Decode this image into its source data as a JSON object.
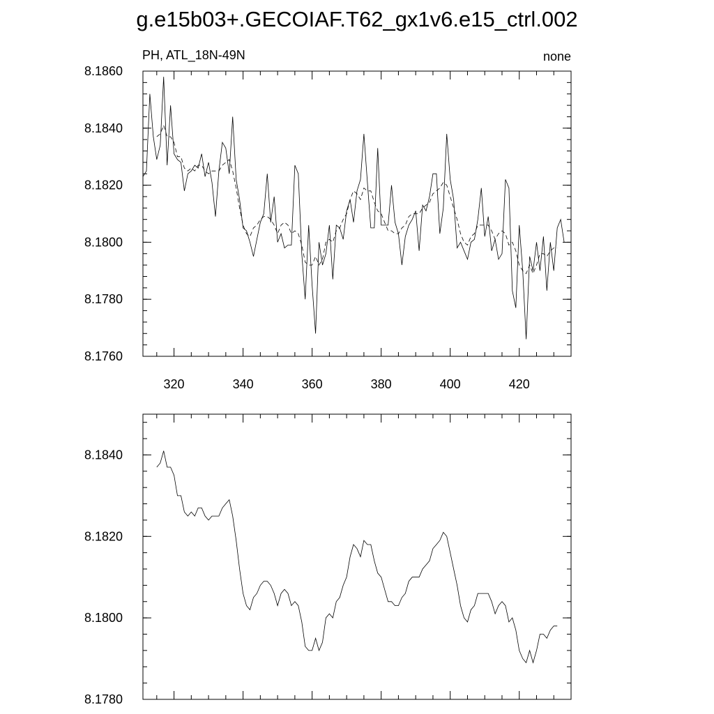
{
  "page": {
    "title": "g.e15b03+.GECOIAF.T62_gx1v6.e15_ctrl.002"
  },
  "chart_data": [
    {
      "type": "line",
      "subtitle_left": "PH, ATL_18N-49N",
      "subtitle_right": "none",
      "xlim": [
        311,
        435
      ],
      "ylim": [
        8.176,
        8.186
      ],
      "xticks": [
        320,
        340,
        360,
        380,
        400,
        420
      ],
      "xtick_labels": [
        "320",
        "340",
        "360",
        "380",
        "400",
        "420"
      ],
      "yticks": [
        8.176,
        8.178,
        8.18,
        8.182,
        8.184,
        8.186
      ],
      "ytick_labels": [
        "8.1760",
        "8.1780",
        "8.1800",
        "8.1820",
        "8.1840",
        "8.1860"
      ],
      "grid": false,
      "series": [
        {
          "style": "solid",
          "x": [
            311,
            312,
            313,
            314,
            315,
            316,
            317,
            318,
            319,
            320,
            321,
            322,
            323,
            324,
            325,
            326,
            327,
            328,
            329,
            330,
            331,
            332,
            333,
            334,
            335,
            336,
            337,
            338,
            339,
            340,
            341,
            342,
            343,
            344,
            345,
            346,
            347,
            348,
            349,
            350,
            351,
            352,
            353,
            354,
            355,
            356,
            357,
            358,
            359,
            360,
            361,
            362,
            363,
            364,
            365,
            366,
            367,
            368,
            369,
            370,
            371,
            372,
            373,
            374,
            375,
            376,
            377,
            378,
            379,
            380,
            381,
            382,
            383,
            384,
            385,
            386,
            387,
            388,
            389,
            390,
            391,
            392,
            393,
            394,
            395,
            396,
            397,
            398,
            399,
            400,
            401,
            402,
            403,
            404,
            405,
            406,
            407,
            408,
            409,
            410,
            411,
            412,
            413,
            414,
            415,
            416,
            417,
            418,
            419,
            420,
            421,
            422,
            423,
            424,
            425,
            426,
            427,
            428,
            429,
            430,
            431,
            432,
            433,
            434,
            435
          ],
          "values": [
            8.1823,
            8.1825,
            8.1852,
            8.1837,
            8.1829,
            8.1834,
            8.1858,
            8.1827,
            8.1848,
            8.1831,
            8.1829,
            8.1828,
            8.1818,
            8.1824,
            8.1825,
            8.1827,
            8.1826,
            8.1831,
            8.1823,
            8.1828,
            8.1821,
            8.1809,
            8.1825,
            8.1835,
            8.1833,
            8.1824,
            8.1844,
            8.1822,
            8.1815,
            8.1805,
            8.1804,
            8.18,
            8.1795,
            8.1801,
            8.1807,
            8.181,
            8.1824,
            8.1807,
            8.1816,
            8.18,
            8.1803,
            8.1798,
            8.1799,
            8.1799,
            8.1827,
            8.1824,
            8.1796,
            8.178,
            8.1806,
            8.1785,
            8.1768,
            8.18,
            8.1792,
            8.1796,
            8.1806,
            8.1787,
            8.1806,
            8.1805,
            8.1801,
            8.1811,
            8.1815,
            8.1807,
            8.1818,
            8.1822,
            8.1838,
            8.1821,
            8.1805,
            8.1805,
            8.1833,
            8.1806,
            8.1806,
            8.1806,
            8.182,
            8.1807,
            8.1803,
            8.1792,
            8.1802,
            8.1806,
            8.1808,
            8.1811,
            8.1797,
            8.1813,
            8.1811,
            8.1816,
            8.1824,
            8.1824,
            8.1803,
            8.1812,
            8.1838,
            8.1822,
            8.1815,
            8.1798,
            8.18,
            8.1797,
            8.1794,
            8.18,
            8.1801,
            8.1808,
            8.1819,
            8.1802,
            8.1809,
            8.1797,
            8.1801,
            8.1794,
            8.1796,
            8.1822,
            8.1819,
            8.1783,
            8.1777,
            8.1806,
            8.179,
            8.1766,
            8.1795,
            8.179,
            8.18,
            8.179,
            8.1802,
            8.1783,
            8.18,
            8.179,
            8.1805,
            8.1808,
            8.18,
            8.18,
            8.18
          ]
        },
        {
          "style": "dashed",
          "x": [
            315,
            316,
            317,
            318,
            319,
            320,
            321,
            322,
            323,
            324,
            325,
            326,
            327,
            328,
            329,
            330,
            331,
            332,
            333,
            334,
            335,
            336,
            337,
            338,
            339,
            340,
            341,
            342,
            343,
            344,
            345,
            346,
            347,
            348,
            349,
            350,
            351,
            352,
            353,
            354,
            355,
            356,
            357,
            358,
            359,
            360,
            361,
            362,
            363,
            364,
            365,
            366,
            367,
            368,
            369,
            370,
            371,
            372,
            373,
            374,
            375,
            376,
            377,
            378,
            379,
            380,
            381,
            382,
            383,
            384,
            385,
            386,
            387,
            388,
            389,
            390,
            391,
            392,
            393,
            394,
            395,
            396,
            397,
            398,
            399,
            400,
            401,
            402,
            403,
            404,
            405,
            406,
            407,
            408,
            409,
            410,
            411,
            412,
            413,
            414,
            415,
            416,
            417,
            418,
            419,
            420,
            421,
            422,
            423,
            424,
            425,
            426,
            427,
            428,
            429,
            430,
            431
          ],
          "values": [
            8.1837,
            8.1838,
            8.1841,
            8.1837,
            8.1837,
            8.1835,
            8.183,
            8.183,
            8.1826,
            8.1825,
            8.1826,
            8.1825,
            8.1827,
            8.1827,
            8.1825,
            8.1824,
            8.1825,
            8.1825,
            8.1825,
            8.1827,
            8.1828,
            8.1829,
            8.1825,
            8.1819,
            8.1812,
            8.1806,
            8.1803,
            8.1802,
            8.1805,
            8.1806,
            8.1808,
            8.1809,
            8.1809,
            8.1808,
            8.1806,
            8.1803,
            8.1806,
            8.1807,
            8.1806,
            8.1803,
            8.1804,
            8.1803,
            8.1799,
            8.1793,
            8.1792,
            8.1792,
            8.1795,
            8.1792,
            8.1794,
            8.18,
            8.1801,
            8.18,
            8.1804,
            8.1805,
            8.1808,
            8.181,
            8.1815,
            8.1818,
            8.1817,
            8.1815,
            8.1819,
            8.1818,
            8.1818,
            8.1814,
            8.1811,
            8.181,
            8.1807,
            8.1804,
            8.1804,
            8.1803,
            8.1803,
            8.1805,
            8.1806,
            8.1809,
            8.181,
            8.181,
            8.181,
            8.1812,
            8.1813,
            8.1814,
            8.1817,
            8.1818,
            8.1819,
            8.1821,
            8.182,
            8.1816,
            8.1812,
            8.1808,
            8.1803,
            8.18,
            8.1799,
            8.1802,
            8.1803,
            8.1806,
            8.1806,
            8.1806,
            8.1806,
            8.1804,
            8.1801,
            8.1803,
            8.1804,
            8.1803,
            8.1799,
            8.18,
            8.1797,
            8.1792,
            8.179,
            8.1789,
            8.1792,
            8.1789,
            8.1792,
            8.1796,
            8.1796,
            8.1795,
            8.1797,
            8.1798,
            8.1798
          ]
        }
      ]
    },
    {
      "type": "line",
      "xlim": [
        311,
        435
      ],
      "ylim": [
        8.178,
        8.185
      ],
      "xticks": [
        320,
        340,
        360,
        380,
        400,
        420
      ],
      "xtick_labels": [],
      "yticks": [
        8.178,
        8.18,
        8.182,
        8.184
      ],
      "ytick_labels": [
        "8.1780",
        "8.1800",
        "8.1820",
        "8.1840"
      ],
      "grid": false,
      "series": [
        {
          "style": "solid",
          "x": [
            315,
            316,
            317,
            318,
            319,
            320,
            321,
            322,
            323,
            324,
            325,
            326,
            327,
            328,
            329,
            330,
            331,
            332,
            333,
            334,
            335,
            336,
            337,
            338,
            339,
            340,
            341,
            342,
            343,
            344,
            345,
            346,
            347,
            348,
            349,
            350,
            351,
            352,
            353,
            354,
            355,
            356,
            357,
            358,
            359,
            360,
            361,
            362,
            363,
            364,
            365,
            366,
            367,
            368,
            369,
            370,
            371,
            372,
            373,
            374,
            375,
            376,
            377,
            378,
            379,
            380,
            381,
            382,
            383,
            384,
            385,
            386,
            387,
            388,
            389,
            390,
            391,
            392,
            393,
            394,
            395,
            396,
            397,
            398,
            399,
            400,
            401,
            402,
            403,
            404,
            405,
            406,
            407,
            408,
            409,
            410,
            411,
            412,
            413,
            414,
            415,
            416,
            417,
            418,
            419,
            420,
            421,
            422,
            423,
            424,
            425,
            426,
            427,
            428,
            429,
            430,
            431
          ],
          "values": [
            8.1837,
            8.1838,
            8.1841,
            8.1837,
            8.1837,
            8.1835,
            8.183,
            8.183,
            8.1826,
            8.1825,
            8.1826,
            8.1825,
            8.1827,
            8.1827,
            8.1825,
            8.1824,
            8.1825,
            8.1825,
            8.1825,
            8.1827,
            8.1828,
            8.1829,
            8.1825,
            8.1819,
            8.1812,
            8.1806,
            8.1803,
            8.1802,
            8.1805,
            8.1806,
            8.1808,
            8.1809,
            8.1809,
            8.1808,
            8.1806,
            8.1803,
            8.1806,
            8.1807,
            8.1806,
            8.1803,
            8.1804,
            8.1803,
            8.1799,
            8.1793,
            8.1792,
            8.1792,
            8.1795,
            8.1792,
            8.1794,
            8.18,
            8.1801,
            8.18,
            8.1804,
            8.1805,
            8.1808,
            8.181,
            8.1815,
            8.1818,
            8.1817,
            8.1815,
            8.1819,
            8.1818,
            8.1818,
            8.1814,
            8.1811,
            8.181,
            8.1807,
            8.1804,
            8.1804,
            8.1803,
            8.1803,
            8.1805,
            8.1806,
            8.1809,
            8.181,
            8.181,
            8.181,
            8.1812,
            8.1813,
            8.1814,
            8.1817,
            8.1818,
            8.1819,
            8.1821,
            8.182,
            8.1816,
            8.1812,
            8.1808,
            8.1803,
            8.18,
            8.1799,
            8.1802,
            8.1803,
            8.1806,
            8.1806,
            8.1806,
            8.1806,
            8.1804,
            8.1801,
            8.1803,
            8.1804,
            8.1803,
            8.1799,
            8.18,
            8.1797,
            8.1792,
            8.179,
            8.1789,
            8.1792,
            8.1789,
            8.1792,
            8.1796,
            8.1796,
            8.1795,
            8.1797,
            8.1798,
            8.1798
          ]
        }
      ]
    }
  ]
}
